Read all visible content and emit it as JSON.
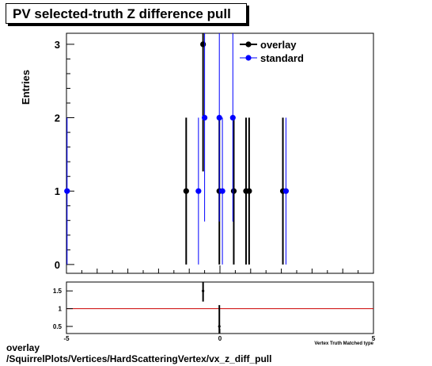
{
  "title": "PV selected-truth Z difference pull",
  "footer": {
    "line1": "overlay",
    "line2": "/SquirrelPlots/Vertices/HardScatteringVertex/vx_z_diff_pull"
  },
  "chart_data": [
    {
      "type": "scatter",
      "panel": "main",
      "ylabel": "Entries",
      "xlim": [
        -5,
        5
      ],
      "ylim": [
        -0.12,
        3.15
      ],
      "yticks": [
        0,
        1,
        2,
        3
      ],
      "grid": false,
      "legend_position": "top-right",
      "series": [
        {
          "name": "overlay",
          "color": "#000000",
          "x": [
            -1.1,
            -0.55,
            -0.02,
            0.45,
            0.85,
            0.95,
            2.05
          ],
          "y": [
            1,
            3,
            1,
            1,
            1,
            1,
            1
          ]
        },
        {
          "name": "standard",
          "color": "#0000ff",
          "x": [
            -4.98,
            -0.7,
            -0.5,
            -0.02,
            0.08,
            0.42,
            2.15
          ],
          "y": [
            1,
            1,
            2,
            2,
            1,
            2,
            1
          ]
        }
      ]
    },
    {
      "type": "scatter",
      "panel": "ratio",
      "xlabel": "Vertex Truth Matched type",
      "xlim": [
        -5,
        5
      ],
      "ylim": [
        0.3,
        1.75
      ],
      "yticks": [
        0.5,
        1,
        1.5
      ],
      "xticks": [
        -5,
        0,
        5
      ],
      "reference_line": {
        "y": 1,
        "color": "#cc0000"
      },
      "series": [
        {
          "name": "ratio",
          "color": "#000000",
          "x": [
            -0.55,
            -0.02
          ],
          "y": [
            1.5,
            0.5
          ],
          "err_low": [
            0.3,
            0.3
          ],
          "err_high": [
            0.3,
            0.6
          ]
        }
      ]
    }
  ]
}
